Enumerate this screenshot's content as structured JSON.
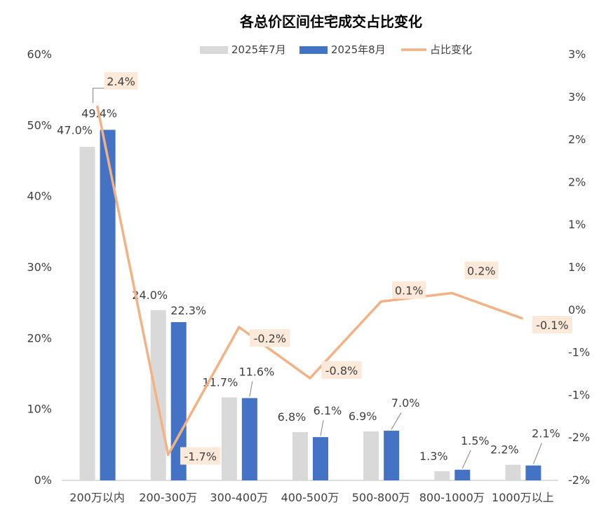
{
  "chart_data": {
    "type": "bar",
    "title": "各总价区间住宅成交占比变化",
    "categories": [
      "200万以内",
      "200-300万",
      "300-400万",
      "400-500万",
      "500-800万",
      "800-1000万",
      "1000万以上"
    ],
    "series": [
      {
        "name": "2025年7月",
        "type": "bar",
        "axis": "left",
        "color": "#d9d9d9",
        "values": [
          47.0,
          24.0,
          11.7,
          6.8,
          6.9,
          1.3,
          2.2
        ],
        "labels": [
          "47.0%",
          "24.0%",
          "11.7%",
          "6.8%",
          "6.9%",
          "1.3%",
          "2.2%"
        ]
      },
      {
        "name": "2025年8月",
        "type": "bar",
        "axis": "left",
        "color": "#4472c4",
        "values": [
          49.4,
          22.3,
          11.6,
          6.1,
          7.0,
          1.5,
          2.1
        ],
        "labels": [
          "49.4%",
          "22.3%",
          "11.6%",
          "6.1%",
          "7.0%",
          "1.5%",
          "2.1%"
        ]
      },
      {
        "name": "占比变化",
        "type": "line",
        "axis": "right",
        "color": "#f4b183",
        "values": [
          2.4,
          -1.7,
          -0.2,
          -0.8,
          0.1,
          0.2,
          -0.1
        ],
        "labels": [
          "2.4%",
          "-1.7%",
          "-0.2%",
          "-0.8%",
          "0.1%",
          "0.2%",
          "-0.1%"
        ]
      }
    ],
    "y_left": {
      "min": 0,
      "max": 60,
      "ticks": [
        "0%",
        "10%",
        "20%",
        "30%",
        "40%",
        "50%",
        "60%"
      ]
    },
    "y_right": {
      "min": -2,
      "max": 3,
      "ticks": [
        "-2%",
        "-2%",
        "-1%",
        "-1%",
        "0%",
        "1%",
        "1%",
        "2%",
        "2%",
        "3%",
        "3%"
      ]
    },
    "legend_position": "top",
    "grid": false,
    "label_box_color": "#fde9d9"
  }
}
